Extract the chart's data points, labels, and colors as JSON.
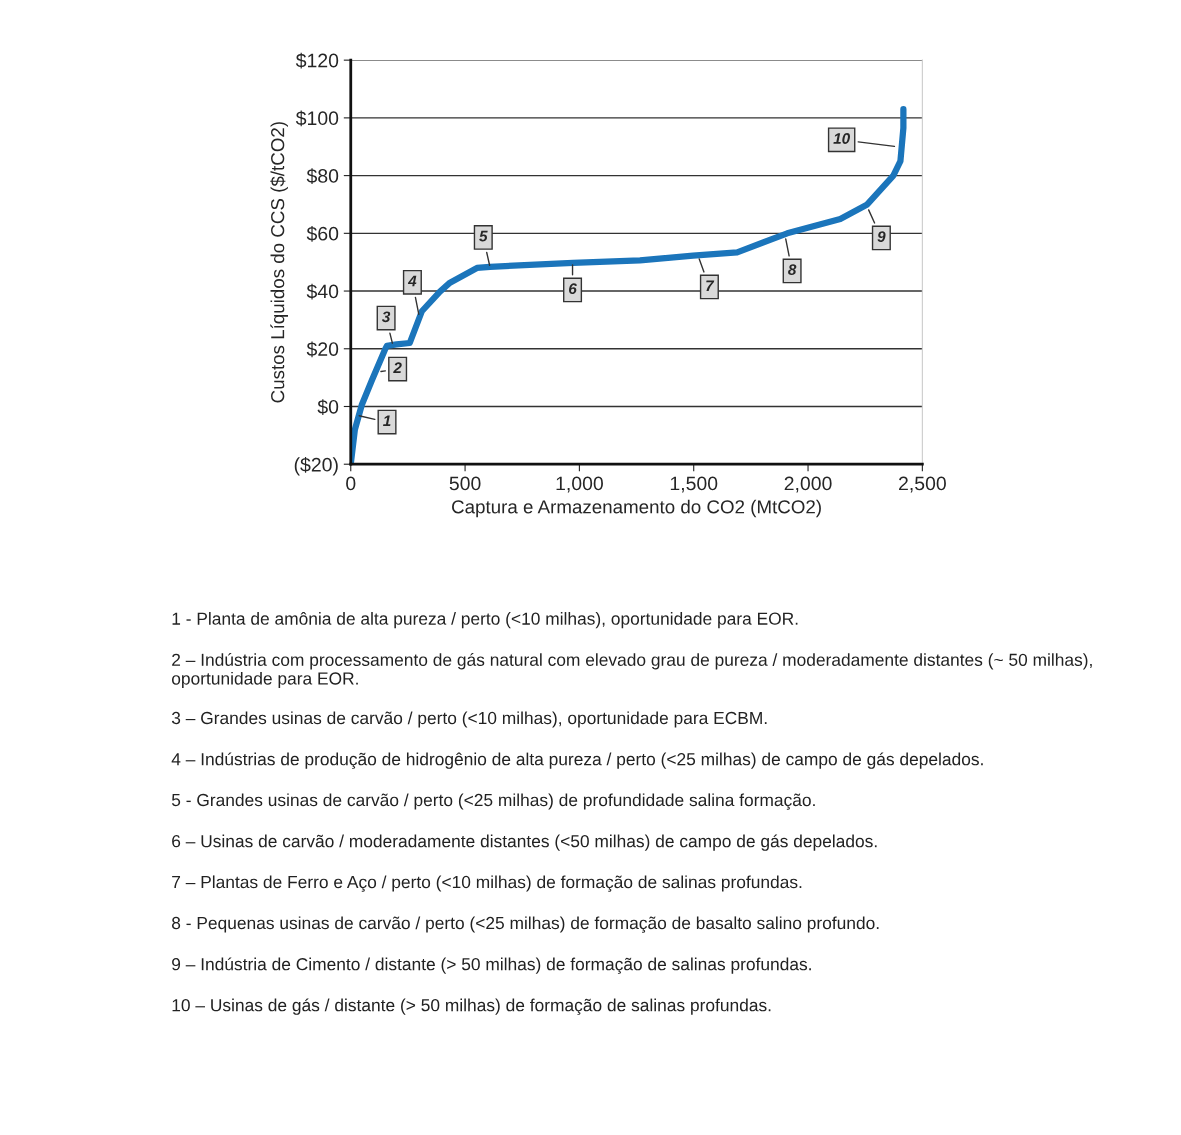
{
  "chart_data": {
    "type": "line",
    "xlabel": "Captura e Armazenamento do CO2 (MtCO2)",
    "ylabel": "Custos Líquidos do CCS ($/tCO2)",
    "series": [
      {
        "color": "#1b75bb",
        "x": [
          0,
          18,
          48,
          92,
          149,
          158,
          200,
          258,
          311,
          390,
          434,
          552,
          609,
          972,
          1265,
          1497,
          1690,
          1909,
          2141,
          2259,
          2373,
          2404,
          2417,
          2417
        ],
        "values": [
          -20,
          -8,
          0.5,
          9,
          19.6,
          21,
          21.5,
          22,
          33,
          39.8,
          42.9,
          48,
          48.4,
          49.8,
          50.6,
          52.3,
          53.4,
          60,
          65,
          70,
          80,
          85,
          96.5,
          103
        ]
      }
    ],
    "xlim": [
      0,
      2500
    ],
    "xticks": [
      0,
      500,
      {
        "value": 1000,
        "label": "1,000"
      },
      {
        "value": 1500,
        "label": "1,500"
      },
      {
        "value": 2000,
        "label": "2,000"
      },
      {
        "value": 2500,
        "label": "2,500"
      }
    ],
    "ylim": [
      -20,
      120
    ],
    "yticks": [
      {
        "value": -20,
        "label": "($20)"
      },
      {
        "value": 0,
        "label": "$0"
      },
      {
        "value": 20,
        "label": "$20"
      },
      {
        "value": 40,
        "label": "$40"
      },
      {
        "value": 60,
        "label": "$60"
      },
      {
        "value": 80,
        "label": "$80"
      },
      {
        "value": 100,
        "label": "$100"
      },
      {
        "value": 120,
        "label": "$120"
      }
    ],
    "grid": "y",
    "legend": false,
    "line_style": "solid",
    "marker": "none",
    "annotations": [
      {
        "text": "1",
        "x": 25,
        "y": -3
      },
      {
        "text": "2",
        "x": 120,
        "y": 12
      },
      {
        "text": "3",
        "x": 185,
        "y": 21
      },
      {
        "text": "4",
        "x": 300,
        "y": 31
      },
      {
        "text": "5",
        "x": 610,
        "y": 48
      },
      {
        "text": "6",
        "x": 970,
        "y": 50
      },
      {
        "text": "7",
        "x": 1520,
        "y": 52
      },
      {
        "text": "8",
        "x": 1900,
        "y": 59
      },
      {
        "text": "9",
        "x": 2260,
        "y": 69
      },
      {
        "text": "10",
        "x": 2390,
        "y": 90
      },
      "1 - Planta de amônia de alta pureza / perto (<10 milhas), oportunidade para EOR.",
      "2 – Indústria com processamento de gás natural com elevado grau de pureza / moderadamente distantes (~ 50 milhas), oportunidade para EOR.",
      "3 – Grandes usinas de carvão / perto (<10 milhas), oportunidade para ECBM.",
      "4 – Indústrias de produção de hidrogênio de alta pureza / perto (<25 milhas) de campo de gás depelados.",
      "5 - Grandes usinas de carvão / perto (<25 milhas) de profundidade salina formação.",
      "6 – Usinas de carvão / moderadamente distantes (<50 milhas) de campo de gás depelados.",
      "7 – Plantas de Ferro e Aço / perto (<10 milhas) de formação de salinas profundas.",
      "8 - Pequenas usinas de carvão / perto (<25 milhas) de formação de basalto salino profundo.",
      "9 – Indústria de Cimento / distante (> 50 milhas) de formação de salinas profundas.",
      "10 – Usinas de gás / distante (> 50 milhas) de formação de salinas profundas."
    ]
  }
}
